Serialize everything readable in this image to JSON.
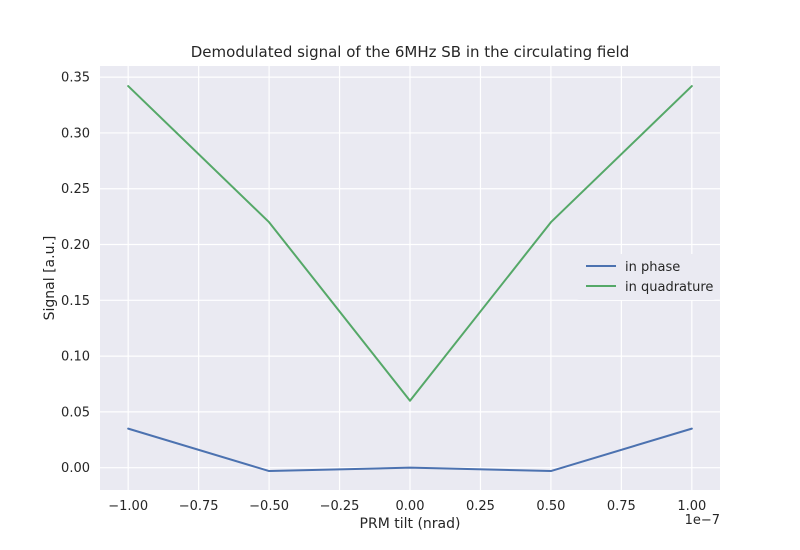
{
  "chart_data": {
    "type": "line",
    "title": "Demodulated signal of the 6MHz SB in the circulating field",
    "xlabel": "PRM tilt (nrad)",
    "ylabel": "Signal [a.u.]",
    "x_offset_text": "1e−7",
    "xlim": [
      -1.1e-07,
      1.1e-07
    ],
    "ylim": [
      -0.02,
      0.36
    ],
    "x_ticks": [
      -1e-07,
      -7.5e-08,
      -5e-08,
      -2.5e-08,
      0,
      2.5e-08,
      5e-08,
      7.5e-08,
      1e-07
    ],
    "x_tick_labels": [
      "−1.00",
      "−0.75",
      "−0.50",
      "−0.25",
      "0.00",
      "0.25",
      "0.50",
      "0.75",
      "1.00"
    ],
    "y_ticks": [
      0,
      0.05,
      0.1,
      0.15,
      0.2,
      0.25,
      0.3,
      0.35
    ],
    "y_tick_labels": [
      "0.00",
      "0.05",
      "0.10",
      "0.15",
      "0.20",
      "0.25",
      "0.30",
      "0.35"
    ],
    "grid": true,
    "legend_position": "center-right",
    "x": [
      -1e-07,
      -5e-08,
      0,
      5e-08,
      1e-07
    ],
    "series": [
      {
        "name": "in phase",
        "color": "#4c72b0",
        "values": [
          0.035,
          -0.003,
          0.0,
          -0.003,
          0.035
        ]
      },
      {
        "name": "in quadrature",
        "color": "#55a868",
        "values": [
          0.342,
          0.22,
          0.06,
          0.22,
          0.342
        ]
      }
    ]
  }
}
